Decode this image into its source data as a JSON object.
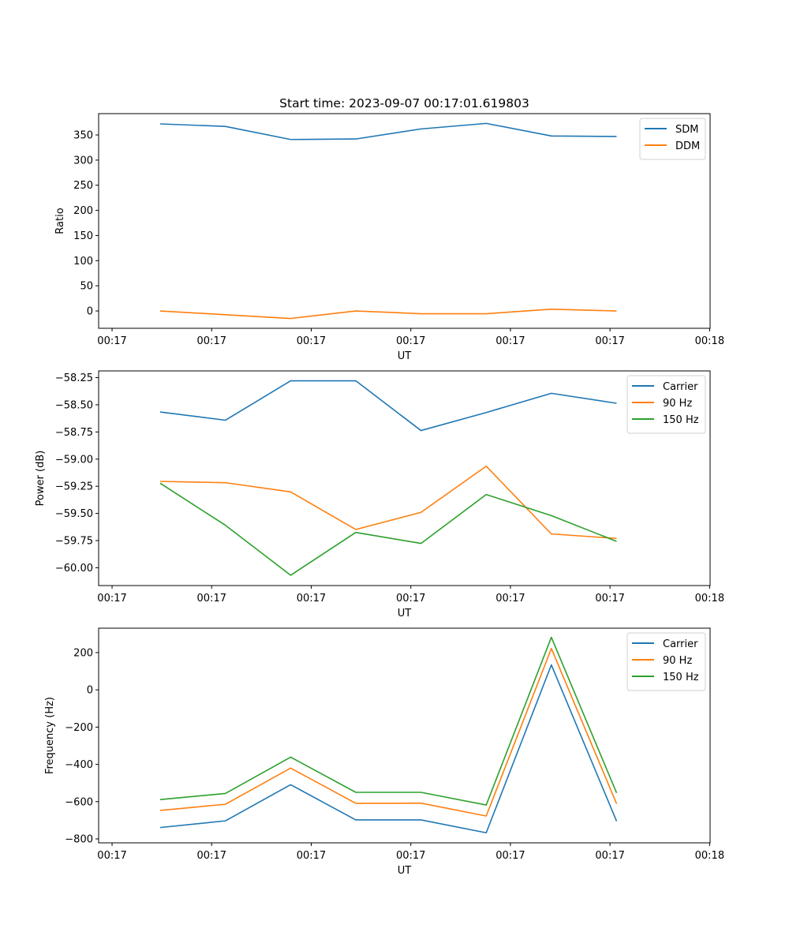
{
  "chart_data": [
    {
      "type": "line",
      "title": "Start time: 2023-09-07 00:17:01.619803",
      "xlabel": "UT",
      "ylabel": "Ratio",
      "x_tick_labels": [
        "00:17",
        "00:17",
        "00:17",
        "00:17",
        "00:17",
        "00:17",
        "00:18"
      ],
      "xlim": [
        -0.135,
        6.005
      ],
      "x": [
        0.483,
        1.138,
        1.793,
        2.447,
        3.102,
        3.757,
        4.411,
        5.066
      ],
      "yticks": [
        0,
        50,
        100,
        150,
        200,
        250,
        300,
        350
      ],
      "ytick_labels": [
        "0",
        "50",
        "100",
        "150",
        "200",
        "250",
        "300",
        "350"
      ],
      "ylim": [
        -34.5,
        392.4
      ],
      "legend_position": "upper right",
      "grid": false,
      "series": [
        {
          "name": "SDM",
          "color": "#1f77b4",
          "values": [
            372,
            367,
            341,
            342,
            362,
            373,
            348,
            347
          ]
        },
        {
          "name": "DDM",
          "color": "#ff7f0e",
          "values": [
            0,
            -7.5,
            -15,
            0,
            -5.5,
            -5.5,
            3.5,
            0
          ]
        }
      ]
    },
    {
      "type": "line",
      "title": "",
      "xlabel": "UT",
      "ylabel": "Power (dB)",
      "x_tick_labels": [
        "00:17",
        "00:17",
        "00:17",
        "00:17",
        "00:17",
        "00:17",
        "00:18"
      ],
      "xlim": [
        -0.135,
        6.005
      ],
      "x": [
        0.483,
        1.138,
        1.793,
        2.447,
        3.102,
        3.757,
        4.411,
        5.066
      ],
      "yticks": [
        -60.0,
        -59.75,
        -59.5,
        -59.25,
        -59.0,
        -58.75,
        -58.5,
        -58.25
      ],
      "ytick_labels": [
        "−60.00",
        "−59.75",
        "−59.50",
        "−59.25",
        "−59.00",
        "−58.75",
        "−58.50",
        "−58.25"
      ],
      "ylim": [
        -60.164,
        -58.188
      ],
      "legend_position": "upper right",
      "grid": false,
      "series": [
        {
          "name": "Carrier",
          "color": "#1f77b4",
          "values": [
            -58.566,
            -58.642,
            -58.279,
            -58.279,
            -58.737,
            -58.571,
            -58.394,
            -58.486
          ]
        },
        {
          "name": "90 Hz",
          "color": "#ff7f0e",
          "values": [
            -59.205,
            -59.217,
            -59.302,
            -59.648,
            -59.49,
            -59.065,
            -59.689,
            -59.73
          ]
        },
        {
          "name": "150 Hz",
          "color": "#2ca02c",
          "values": [
            -59.222,
            -59.609,
            -60.069,
            -59.675,
            -59.776,
            -59.326,
            -59.52,
            -59.757
          ]
        }
      ]
    },
    {
      "type": "line",
      "title": "",
      "xlabel": "UT",
      "ylabel": "Frequency (Hz)",
      "x_tick_labels": [
        "00:17",
        "00:17",
        "00:17",
        "00:17",
        "00:17",
        "00:17",
        "00:18"
      ],
      "xlim": [
        -0.135,
        6.005
      ],
      "x": [
        0.483,
        1.138,
        1.793,
        2.447,
        3.102,
        3.757,
        4.411,
        5.066
      ],
      "yticks": [
        -800,
        -600,
        -400,
        -200,
        0,
        200
      ],
      "ytick_labels": [
        "−800",
        "−600",
        "−400",
        "−200",
        "0",
        "200"
      ],
      "ylim": [
        -821,
        331
      ],
      "legend_position": "upper right",
      "grid": false,
      "series": [
        {
          "name": "Carrier",
          "color": "#1f77b4",
          "values": [
            -739,
            -703,
            -509,
            -698,
            -698,
            -767,
            134,
            -705
          ]
        },
        {
          "name": "90 Hz",
          "color": "#ff7f0e",
          "values": [
            -647,
            -614,
            -420,
            -609,
            -608,
            -677,
            222,
            -611
          ]
        },
        {
          "name": "150 Hz",
          "color": "#2ca02c",
          "values": [
            -589,
            -556,
            -361,
            -550,
            -550,
            -618,
            282,
            -553
          ]
        }
      ]
    }
  ]
}
